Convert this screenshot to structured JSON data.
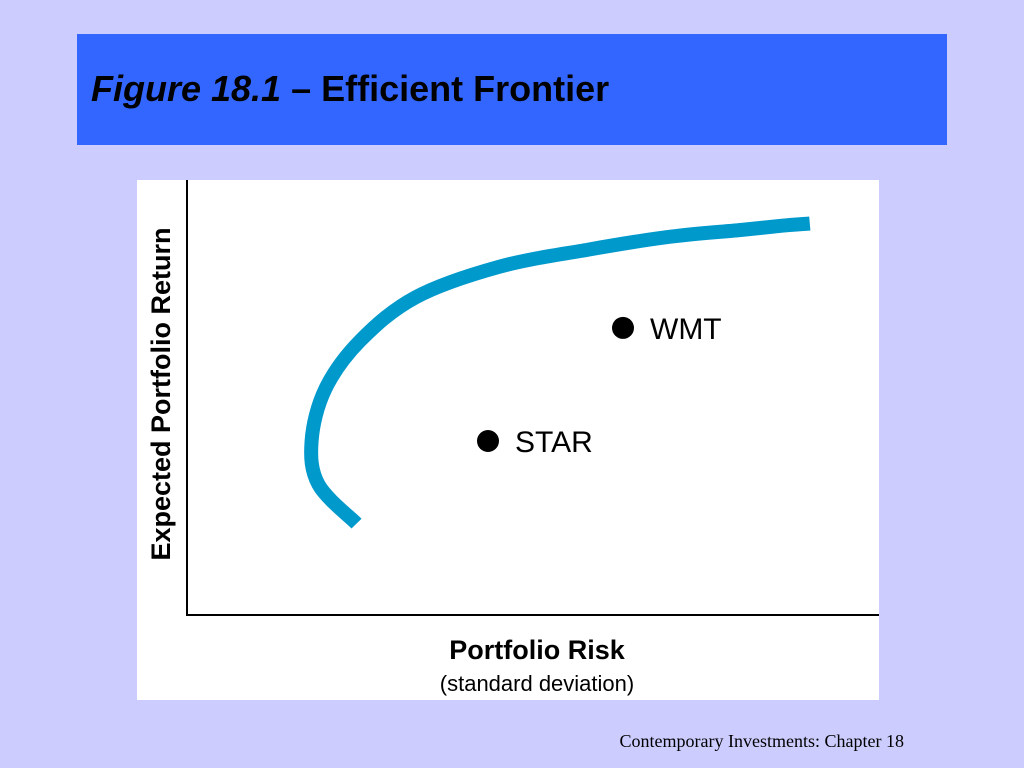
{
  "slide": {
    "title_figure": "Figure 18.1",
    "title_rest": " – Efficient Frontier",
    "footer": "Contemporary Investments: Chapter 18"
  },
  "colors": {
    "background": "#ccccff",
    "title_bar": "#3366ff",
    "frontier_curve": "#0099cc",
    "points": "#000000"
  },
  "chart_data": {
    "type": "scatter",
    "title": "",
    "xlabel": "Portfolio Risk",
    "xlabel_sub": "(standard deviation)",
    "ylabel": "Expected Portfolio Return",
    "xlim": [
      0,
      100
    ],
    "ylim": [
      0,
      100
    ],
    "grid": false,
    "axis_ticks": false,
    "frontier": {
      "x": [
        24.5,
        19,
        18,
        20,
        25,
        33,
        45,
        58,
        70,
        80,
        86,
        90
      ],
      "y": [
        21,
        30,
        40,
        52,
        63,
        73,
        80,
        84,
        87,
        88.5,
        89.5,
        90
      ]
    },
    "points": [
      {
        "label": "WMT",
        "x": 63,
        "y": 66
      },
      {
        "label": "STAR",
        "x": 43.5,
        "y": 40
      }
    ]
  }
}
